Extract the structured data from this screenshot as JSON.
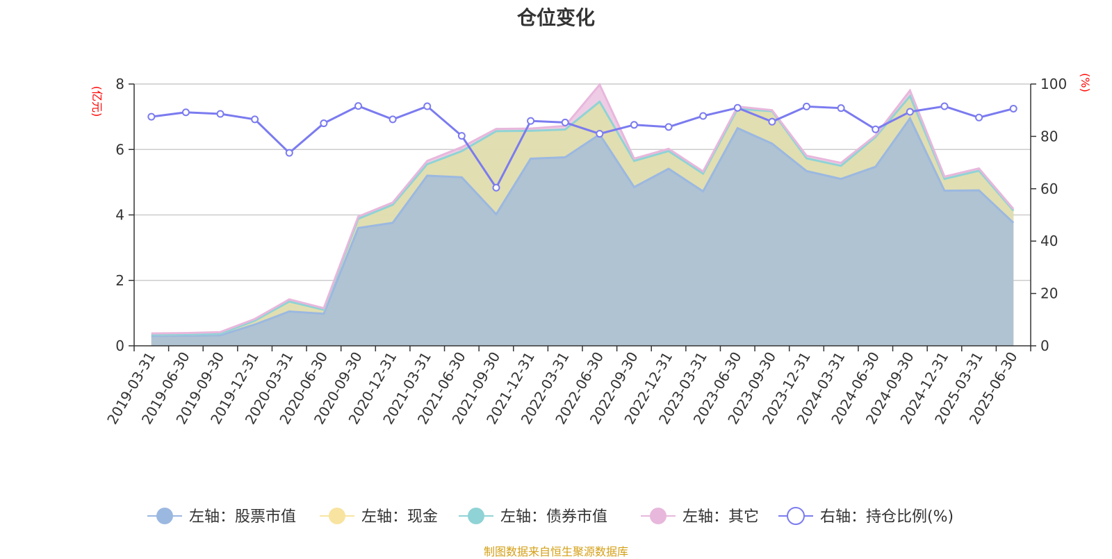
{
  "chart_data": {
    "type": "area",
    "title": "仓位变化",
    "y_left_unit": "(亿元)",
    "y_right_unit": "(%)",
    "y_left_range": [
      0,
      8
    ],
    "y_left_ticks": [
      "0",
      "2",
      "4",
      "6",
      "8"
    ],
    "y_right_range": [
      0,
      100
    ],
    "y_right_ticks": [
      "0",
      "20",
      "40",
      "60",
      "80",
      "100"
    ],
    "grid": true,
    "legend_position": "bottom",
    "categories": [
      "2019-03-31",
      "2019-06-30",
      "2019-09-30",
      "2019-12-31",
      "2020-03-31",
      "2020-06-30",
      "2020-09-30",
      "2020-12-31",
      "2021-03-31",
      "2021-06-30",
      "2021-09-30",
      "2021-12-31",
      "2022-03-31",
      "2022-06-30",
      "2022-09-30",
      "2022-12-31",
      "2023-03-31",
      "2023-06-30",
      "2023-09-30",
      "2023-12-31",
      "2024-03-31",
      "2024-06-30",
      "2024-09-30",
      "2024-12-31",
      "2025-03-31",
      "2025-06-30"
    ],
    "series": [
      {
        "name": "左轴：股票市值",
        "axis": "left",
        "type": "area",
        "color": "#9bb8e0",
        "values": [
          0.3,
          0.31,
          0.32,
          0.65,
          1.05,
          0.98,
          3.6,
          3.76,
          5.2,
          5.15,
          4.02,
          5.72,
          5.76,
          6.46,
          4.85,
          5.41,
          4.72,
          6.65,
          6.18,
          5.34,
          5.1,
          5.47,
          6.95,
          4.74,
          4.75,
          3.76
        ]
      },
      {
        "name": "左轴：现金",
        "axis": "left",
        "type": "area",
        "color": "#f8e4a0",
        "values": [
          0.04,
          0.04,
          0.05,
          0.12,
          0.28,
          0.12,
          0.28,
          0.55,
          0.35,
          0.8,
          2.54,
          0.85,
          0.85,
          1.0,
          0.8,
          0.54,
          0.54,
          0.59,
          0.99,
          0.39,
          0.4,
          0.91,
          0.68,
          0.36,
          0.6,
          0.37
        ]
      },
      {
        "name": "左轴：债券市值",
        "axis": "left",
        "type": "area",
        "color": "#8fd3d6",
        "values": [
          0,
          0,
          0,
          0,
          0.02,
          0,
          0,
          0,
          0,
          0,
          0,
          0,
          0,
          0,
          0,
          0,
          0,
          0,
          0,
          0,
          0,
          0,
          0,
          0,
          0,
          0
        ]
      },
      {
        "name": "左轴：其它",
        "axis": "left",
        "type": "area",
        "color": "#e8b7dc",
        "values": [
          0.04,
          0.04,
          0.05,
          0.05,
          0.07,
          0.05,
          0.07,
          0.07,
          0.1,
          0.12,
          0.07,
          0.07,
          0.11,
          0.52,
          0.07,
          0.07,
          0.07,
          0.07,
          0.03,
          0.08,
          0.09,
          0.05,
          0.17,
          0.07,
          0.07,
          0.05
        ]
      },
      {
        "name": "右轴：持仓比例(%)",
        "axis": "right",
        "type": "line",
        "color": "#7b7bf0",
        "values": [
          87.5,
          89.2,
          88.6,
          86.5,
          73.7,
          85.0,
          91.6,
          86.5,
          91.5,
          80.2,
          60.4,
          85.9,
          85.3,
          81.0,
          84.4,
          83.6,
          87.8,
          90.9,
          85.6,
          91.4,
          90.8,
          82.7,
          89.4,
          91.5,
          87.2,
          90.6
        ]
      }
    ]
  },
  "footer": "制图数据来自恒生聚源数据库"
}
